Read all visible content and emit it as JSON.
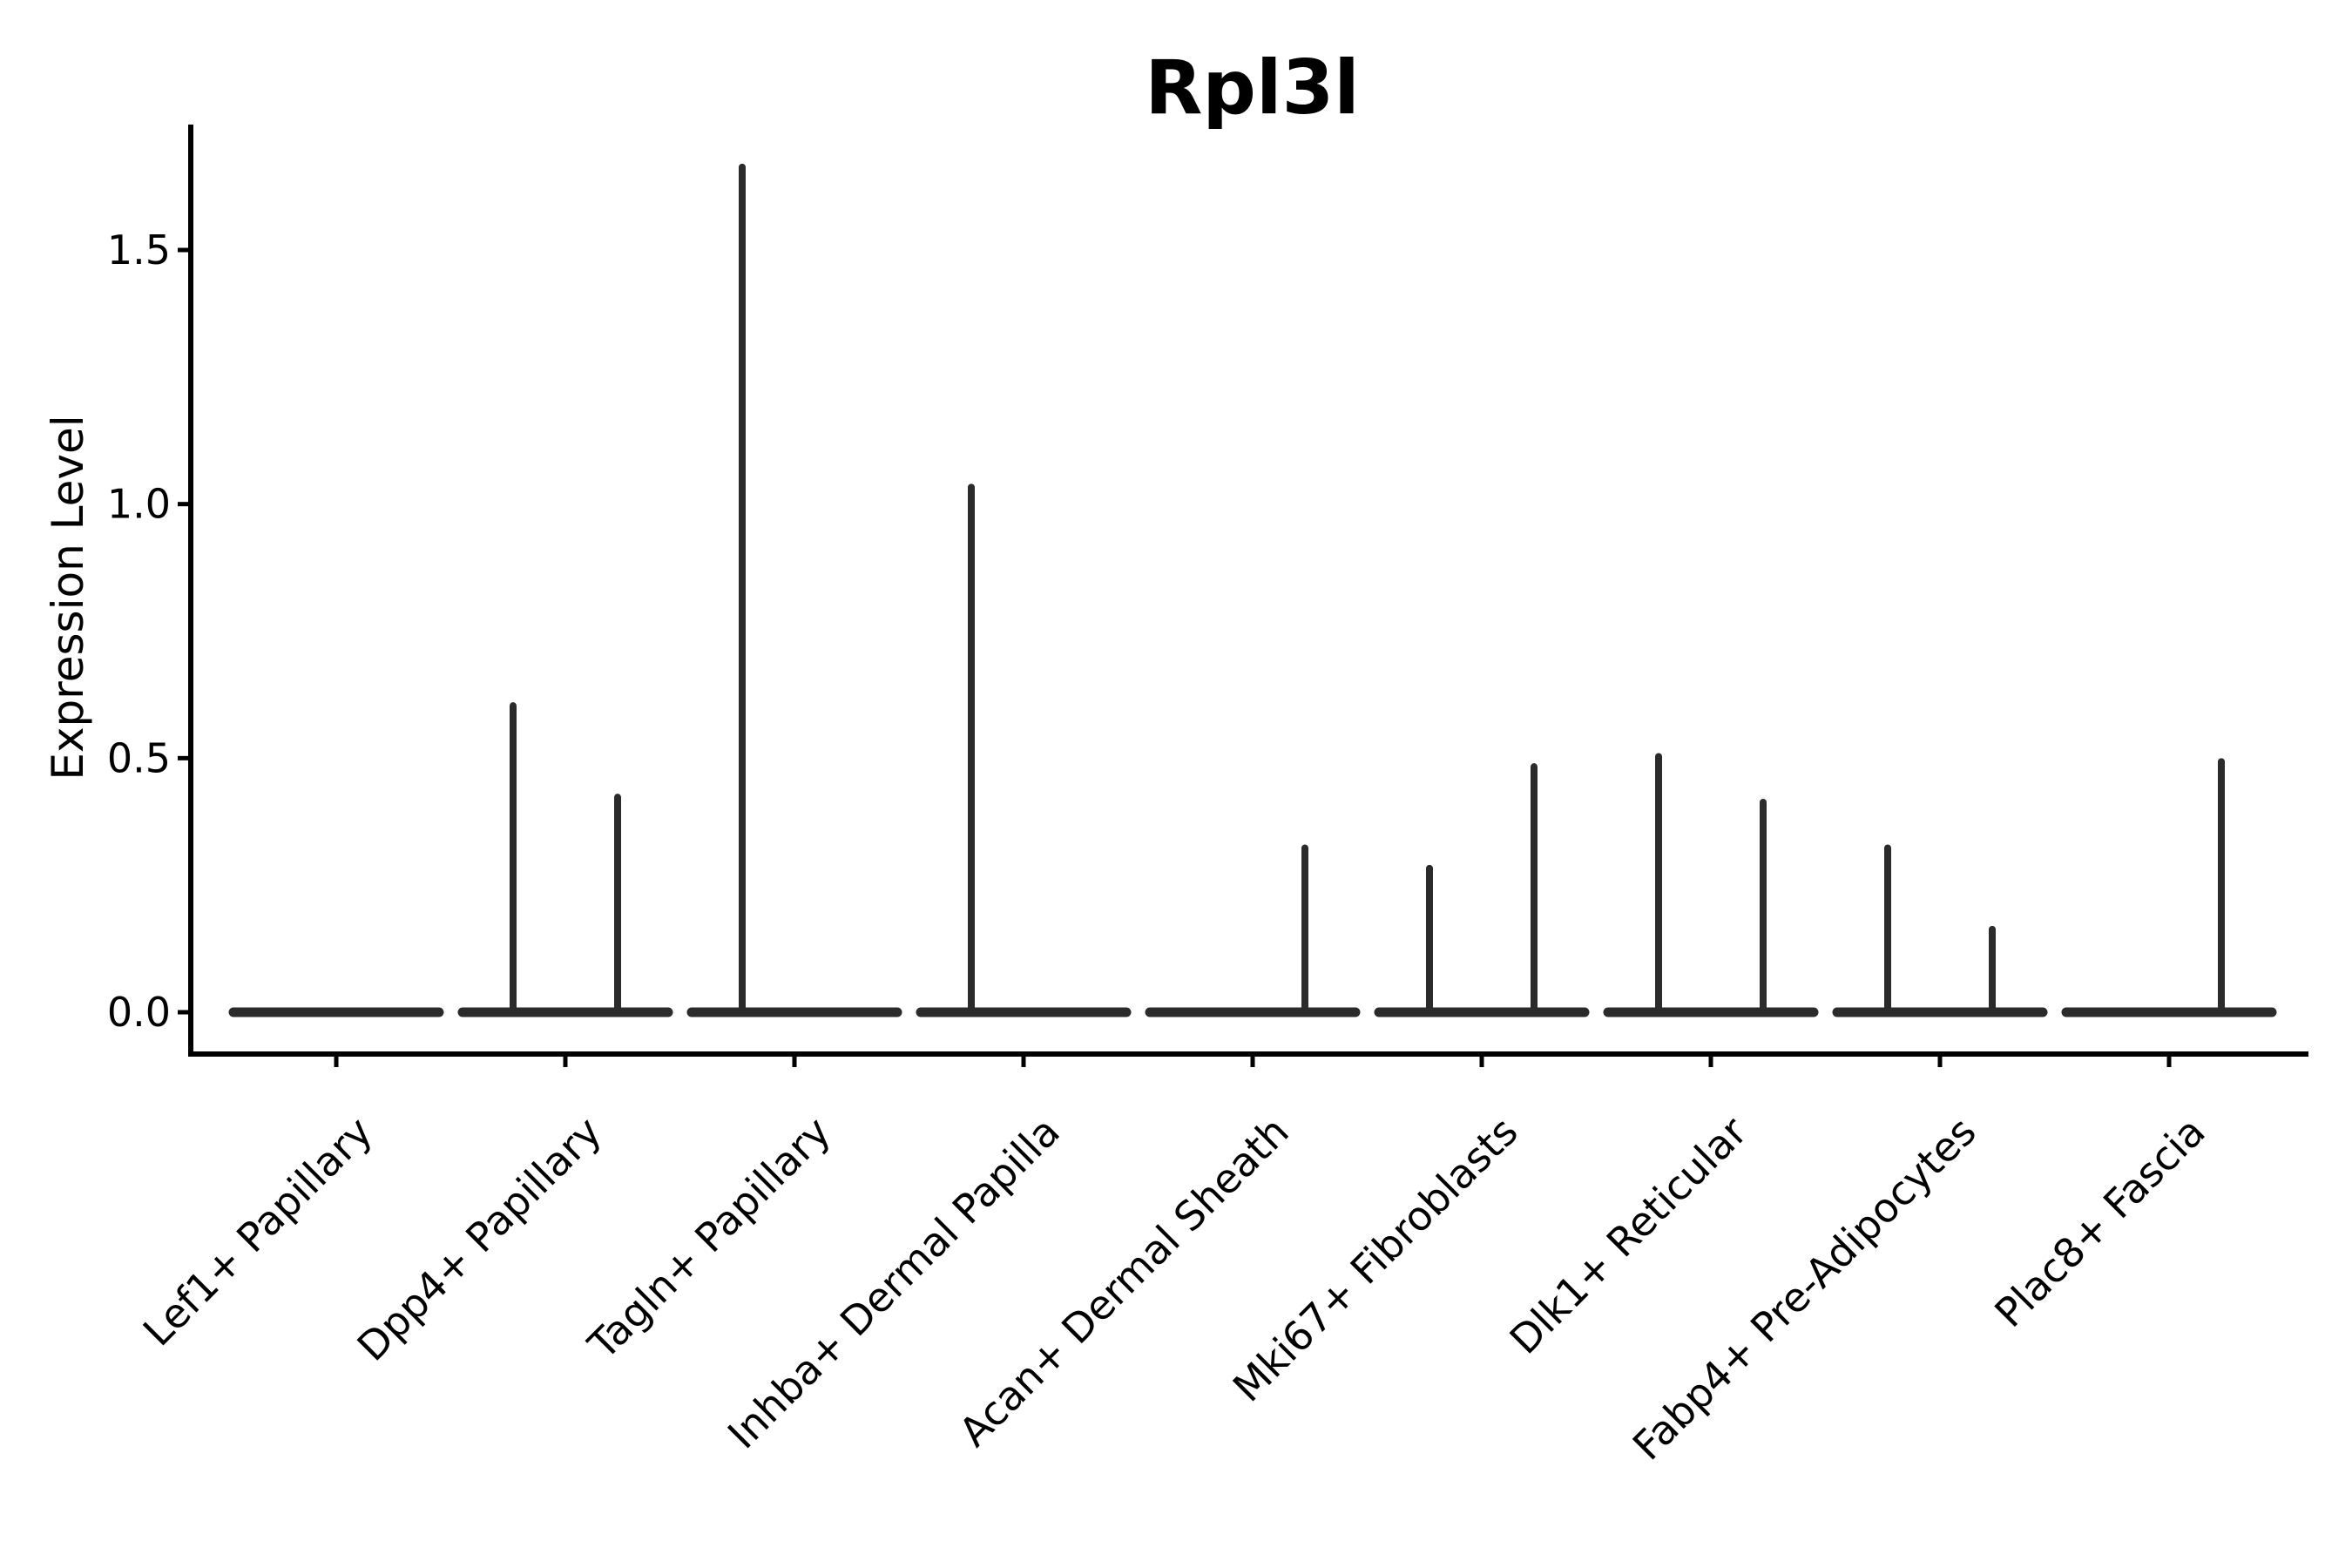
{
  "chart_data": {
    "type": "violin",
    "title": "Rpl3l",
    "ylabel": "Expression Level",
    "xlabel": "",
    "categories": [
      "Lef1+ Papillary",
      "Dpp4+ Papillary",
      "Tagln+ Papillary",
      "Inhba+ Dermal Papilla",
      "Acan+ Dermal Sheath",
      "Mki67+ Fibroblasts",
      "Dlk1+ Reticular",
      "Fabp4+ Pre-Adipocytes",
      "Plac8+ Fascia"
    ],
    "violins_per_category": 2,
    "series": [
      {
        "category": "Lef1+ Papillary",
        "spikes": [
          0,
          0
        ]
      },
      {
        "category": "Dpp4+ Papillary",
        "spikes": [
          0.61,
          0.43
        ]
      },
      {
        "category": "Tagln+ Papillary",
        "spikes": [
          1.67,
          0
        ]
      },
      {
        "category": "Inhba+ Dermal Papilla",
        "spikes": [
          1.04,
          0
        ]
      },
      {
        "category": "Acan+ Dermal Sheath",
        "spikes": [
          0,
          0.33
        ]
      },
      {
        "category": "Mki67+ Fibroblasts",
        "spikes": [
          0.29,
          0.49
        ]
      },
      {
        "category": "Dlk1+ Reticular",
        "spikes": [
          0.51,
          0.42
        ]
      },
      {
        "category": "Fabp4+ Pre-Adipocytes",
        "spikes": [
          0.33,
          0.17
        ]
      },
      {
        "category": "Plac8+ Fascia",
        "spikes": [
          0,
          0.5
        ]
      }
    ],
    "spike_description": "Each category holds two flat violins (nearly all zeros); value is the max expression reached by each thin density spike, 0 = flat violin with no spike",
    "yticks": [
      0.0,
      0.5,
      1.0,
      1.5
    ],
    "y_tick_labels": [
      "0.0",
      "0.5",
      "1.0",
      "1.5"
    ],
    "ylim": [
      -0.08,
      1.75
    ],
    "x_tick_rotation": 45,
    "grid": false,
    "legend": null,
    "colors": {
      "violin": "#2b2b2b",
      "axis": "#000000",
      "text": "#000000",
      "background": "#ffffff"
    }
  }
}
